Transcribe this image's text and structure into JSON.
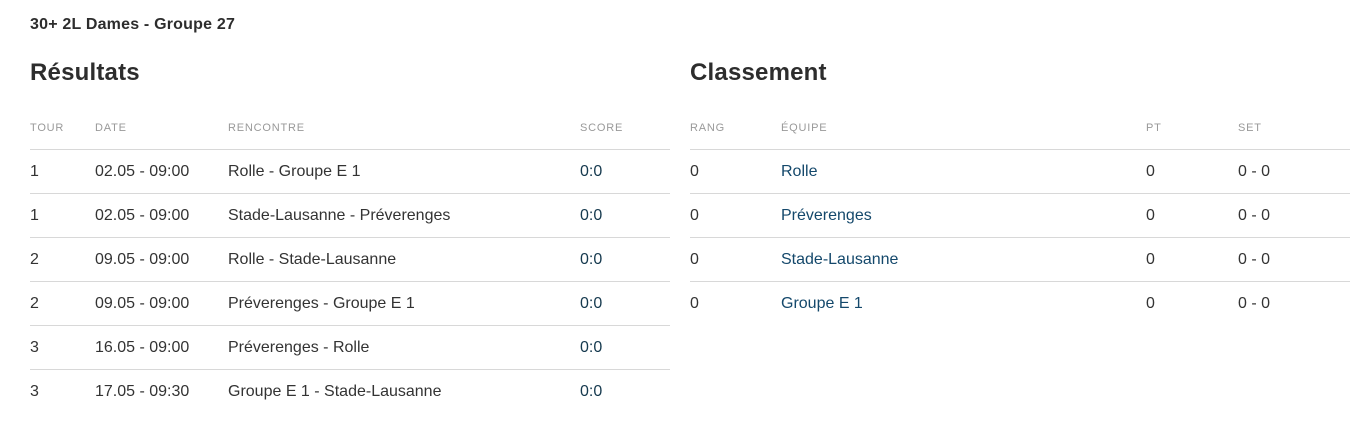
{
  "page_title": "30+ 2L Dames - Groupe 27",
  "results": {
    "heading": "Résultats",
    "columns": {
      "tour": "TOUR",
      "date": "DATE",
      "rencontre": "RENCONTRE",
      "score": "SCORE"
    },
    "rows": [
      {
        "tour": "1",
        "date": "02.05 - 09:00",
        "rencontre": "Rolle - Groupe E 1",
        "score": "0:0"
      },
      {
        "tour": "1",
        "date": "02.05 - 09:00",
        "rencontre": "Stade-Lausanne - Préverenges",
        "score": "0:0"
      },
      {
        "tour": "2",
        "date": "09.05 - 09:00",
        "rencontre": "Rolle - Stade-Lausanne",
        "score": "0:0"
      },
      {
        "tour": "2",
        "date": "09.05 - 09:00",
        "rencontre": "Préverenges - Groupe E 1",
        "score": "0:0"
      },
      {
        "tour": "3",
        "date": "16.05 - 09:00",
        "rencontre": "Préverenges - Rolle",
        "score": "0:0"
      },
      {
        "tour": "3",
        "date": "17.05 - 09:30",
        "rencontre": "Groupe E 1 - Stade-Lausanne",
        "score": "0:0"
      }
    ]
  },
  "standings": {
    "heading": "Classement",
    "columns": {
      "rang": "RANG",
      "equipe": "ÉQUIPE",
      "pt": "PT",
      "set": "SET"
    },
    "rows": [
      {
        "rang": "0",
        "equipe": "Rolle",
        "pt": "0",
        "set": "0 - 0"
      },
      {
        "rang": "0",
        "equipe": "Préverenges",
        "pt": "0",
        "set": "0 - 0"
      },
      {
        "rang": "0",
        "equipe": "Stade-Lausanne",
        "pt": "0",
        "set": "0 - 0"
      },
      {
        "rang": "0",
        "equipe": "Groupe E 1",
        "pt": "0",
        "set": "0 - 0"
      }
    ]
  },
  "colors": {
    "background": "#ffffff",
    "text_dark": "#2d2d2d",
    "column_header_gray": "#999999",
    "row_border": "#d8d8d8",
    "score_link": "#15394e",
    "team_link": "#14486b"
  }
}
